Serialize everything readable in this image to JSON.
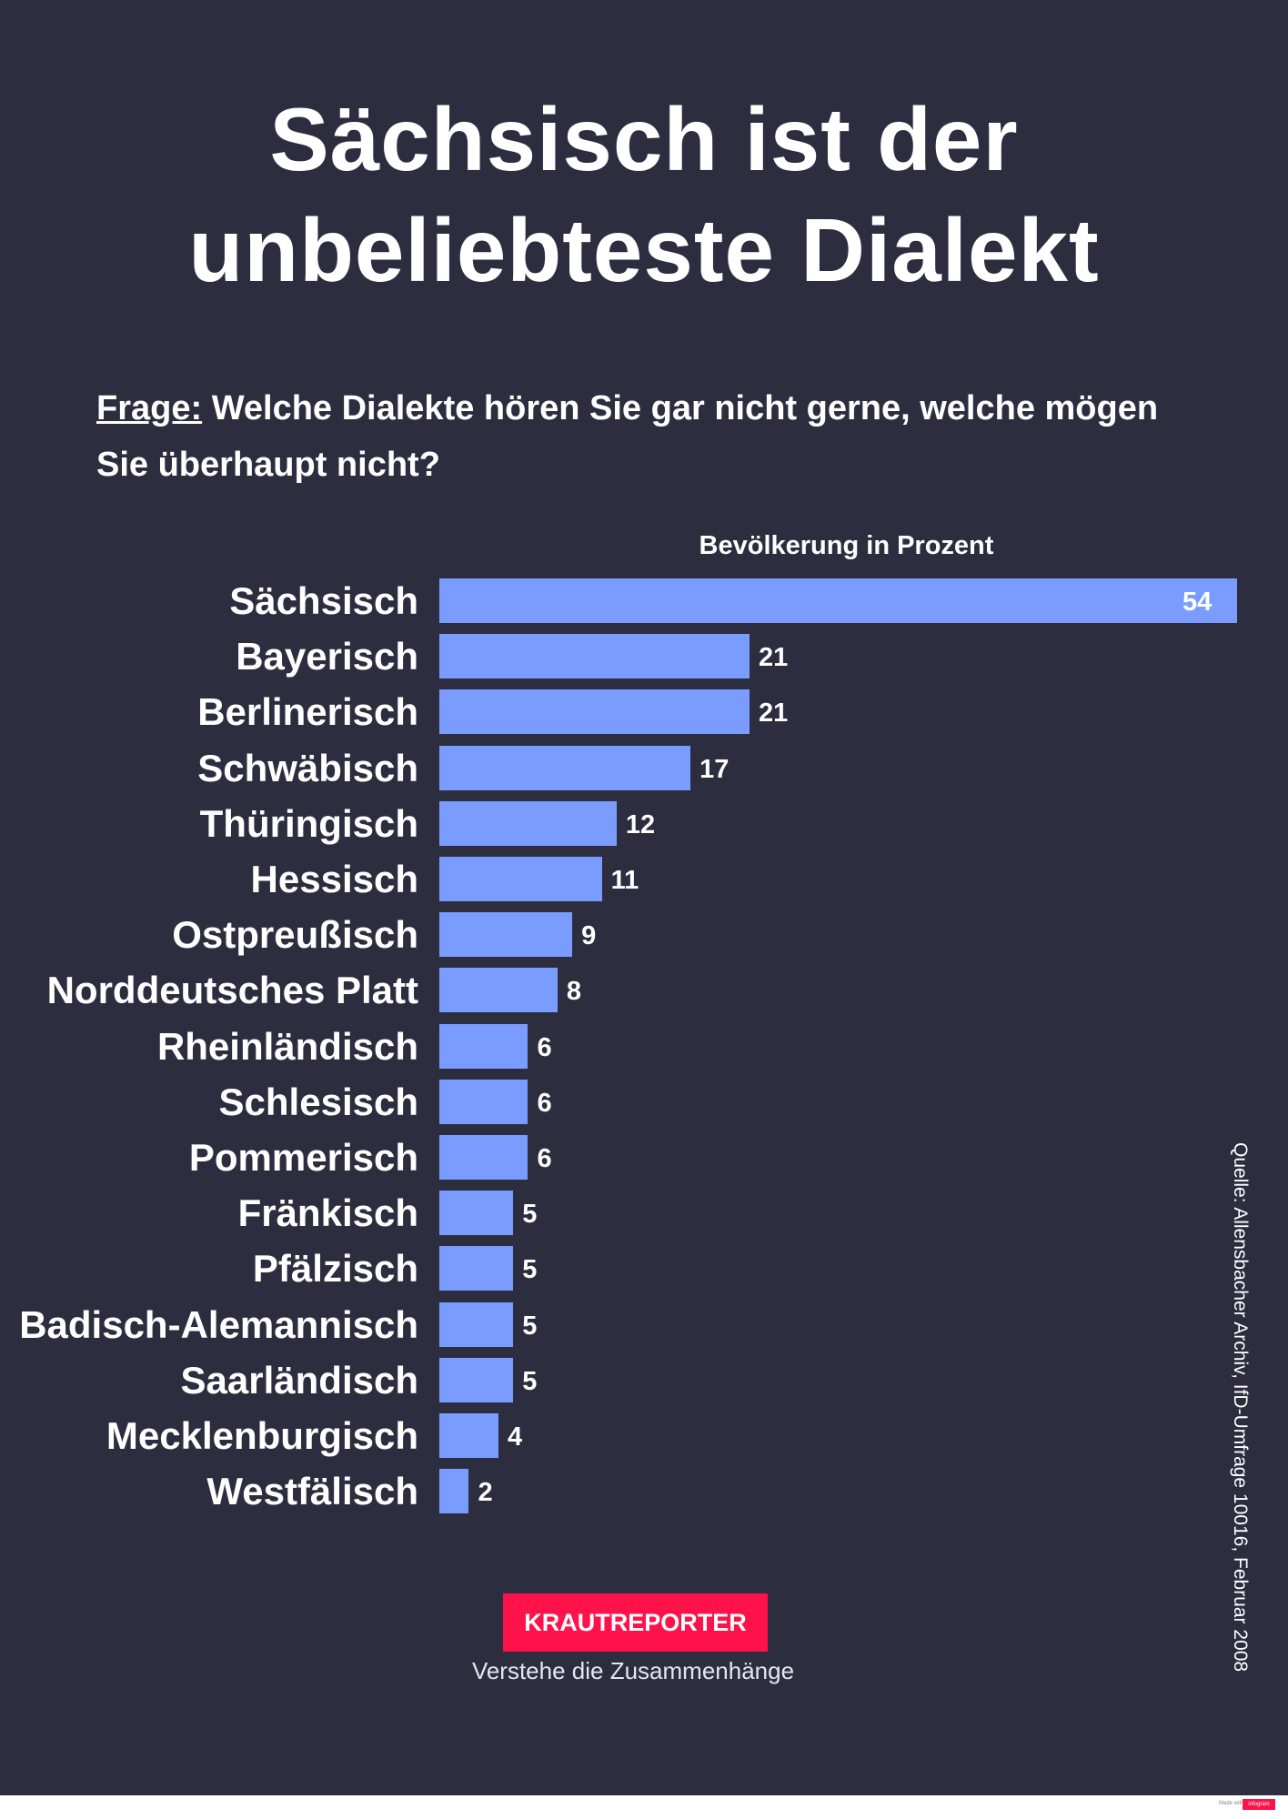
{
  "title_line1": "Sächsisch ist der",
  "title_line2": "unbeliebteste Dialekt",
  "question": {
    "label": "Frage:",
    "text": " Welche Dialekte hören Sie gar nicht gerne, welche mögen Sie überhaupt nicht?"
  },
  "source": "Quelle: Allensbacher Archiv, IfD-Umfrage 10016, Februar 2008",
  "logo": "KRAUTREPORTER",
  "tagline": "Verstehe die Zusammenhänge",
  "footer": {
    "made_with": "Made with",
    "brand": "infogram"
  },
  "colors": {
    "background": "#2d2d40",
    "bar": "#7b9cff",
    "logo": "#ff1249"
  },
  "chart_data": {
    "type": "bar",
    "orientation": "horizontal",
    "subtitle": "Bevölkerung in Prozent",
    "categories": [
      "Sächsisch",
      "Bayerisch",
      "Berlinerisch",
      "Schwäbisch",
      "Thüringisch",
      "Hessisch",
      "Ostpreußisch",
      "Norddeutsches Platt",
      "Rheinländisch",
      "Schlesisch",
      "Pommerisch",
      "Fränkisch",
      "Pfälzisch",
      "Badisch-Alemannisch",
      "Saarländisch",
      "Mecklenburgisch",
      "Westfälisch"
    ],
    "values": [
      54,
      21,
      21,
      17,
      12,
      11,
      9,
      8,
      6,
      6,
      6,
      5,
      5,
      5,
      5,
      4,
      2
    ],
    "xlim": [
      0,
      54
    ],
    "grid": false,
    "legend": "none"
  }
}
